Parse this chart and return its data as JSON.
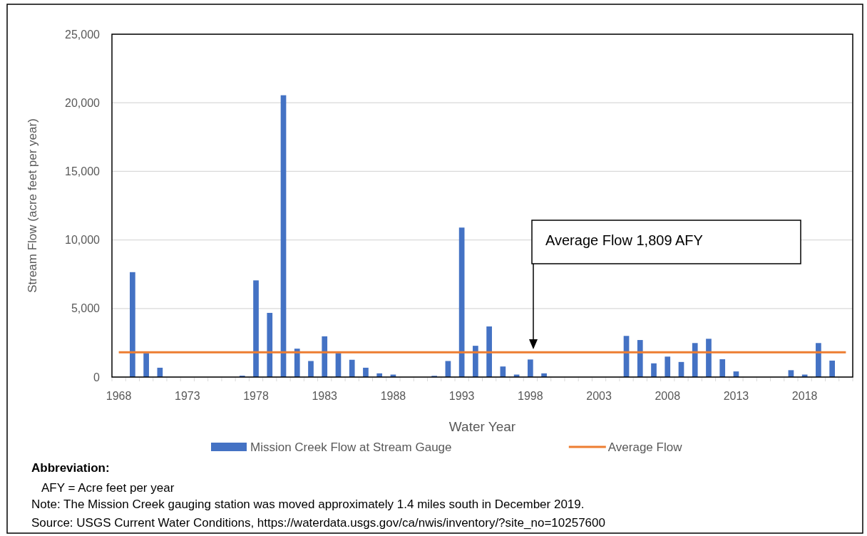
{
  "chart_data": {
    "type": "bar",
    "xlabel": "Water Year",
    "ylabel": "Stream Flow (acre feet per year)",
    "categories": [
      "1968",
      null,
      null,
      null,
      null,
      "1973",
      null,
      null,
      null,
      null,
      "1978",
      null,
      null,
      null,
      null,
      "1983",
      null,
      null,
      null,
      null,
      "1988",
      null,
      null,
      null,
      null,
      "1993",
      null,
      null,
      null,
      null,
      "1998",
      null,
      null,
      null,
      null,
      "2003",
      null,
      null,
      null,
      null,
      "2008",
      null,
      null,
      null,
      null,
      "2013",
      null,
      null,
      null,
      null,
      "2018",
      null,
      null,
      null
    ],
    "series": [
      {
        "name": "Mission Creek Flow at Stream Gauge",
        "color": "#4472c4",
        "values": [
          0,
          7650,
          1750,
          680,
          0,
          0,
          0,
          0,
          0,
          100,
          7050,
          4680,
          20550,
          2070,
          1170,
          2970,
          1750,
          1260,
          680,
          270,
          180,
          0,
          0,
          90,
          1170,
          10900,
          2280,
          3690,
          770,
          180,
          1280,
          270,
          0,
          0,
          0,
          0,
          0,
          3000,
          2700,
          1000,
          1490,
          1100,
          2480,
          2790,
          1300,
          410,
          0,
          0,
          0,
          500,
          180,
          2480,
          1200,
          0
        ]
      },
      {
        "name": "Average Flow",
        "type": "line",
        "color": "#ed7d31",
        "values": [
          1809,
          1809,
          1809,
          1809,
          1809,
          1809,
          1809,
          1809,
          1809,
          1809,
          1809,
          1809,
          1809,
          1809,
          1809,
          1809,
          1809,
          1809,
          1809,
          1809,
          1809,
          1809,
          1809,
          1809,
          1809,
          1809,
          1809,
          1809,
          1809,
          1809,
          1809,
          1809,
          1809,
          1809,
          1809,
          1809,
          1809,
          1809,
          1809,
          1809,
          1809,
          1809,
          1809,
          1809,
          1809,
          1809,
          1809,
          1809,
          1809,
          1809,
          1809,
          1809,
          1809,
          1809
        ]
      }
    ],
    "ylim": [
      0,
      25000
    ],
    "yticks": [
      0,
      {
        "value": 5000,
        "label": "5,000"
      },
      {
        "value": 10000,
        "label": "10,000"
      },
      {
        "value": 15000,
        "label": "15,000"
      },
      {
        "value": 20000,
        "label": "20,000"
      },
      {
        "value": 25000,
        "label": "25,000"
      }
    ],
    "grid": "y",
    "legend": "bottom",
    "annotations": [
      "Average Flow 1,809 AFY",
      "Abbreviation:",
      "AFY = Acre feet per year",
      "Note: The Mission Creek gauging station was moved approximately 1.4 miles south in December 2019.",
      "Source: USGS Current Water Conditions, https://waterdata.usgs.gov/ca/nwis/inventory/?site_no=10257600"
    ]
  }
}
